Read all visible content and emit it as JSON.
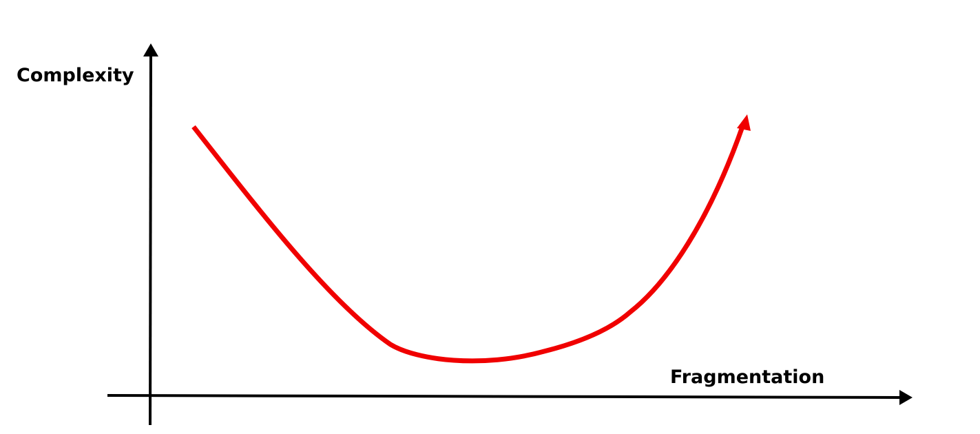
{
  "diagram": {
    "y_axis_label": "Complexity",
    "x_axis_label": "Fragmentation",
    "axis_color": "#000000",
    "curve_color": "#f00000",
    "curve_shape": "U-shaped curve with arrowhead at right end",
    "arrows": [
      "y-axis-up-arrow",
      "x-axis-right-arrow",
      "curve-end-arrow"
    ]
  }
}
